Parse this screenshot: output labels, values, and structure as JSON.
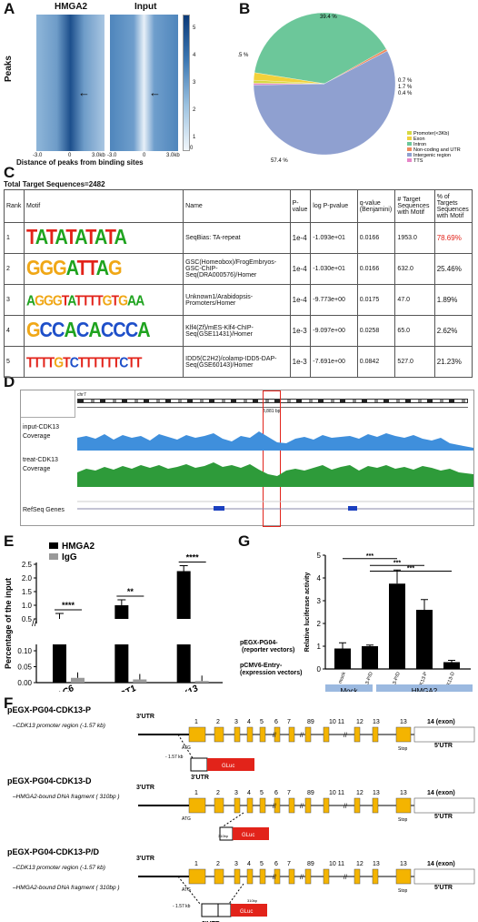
{
  "panels": {
    "A": "A",
    "B": "B",
    "C": "C",
    "D": "D",
    "E": "E",
    "F": "F",
    "G": "G"
  },
  "panelA": {
    "heatmap_titles": [
      "HMGA2",
      "Input"
    ],
    "ylabel": "Peaks",
    "xticks": [
      "-3.0",
      "0",
      "3.0kb",
      "-3.0",
      "0",
      "3.0kb"
    ],
    "xlabel": "Distance of peaks from binding sites",
    "colorbar_ticks": [
      "5",
      "4",
      "3",
      "2",
      "1",
      "0"
    ]
  },
  "panelB": {
    "slices": [
      {
        "label": "Promoter(<3Kb)",
        "pct": "0.7 %",
        "value": 0.7,
        "color": "#d6d943"
      },
      {
        "label": "Exon",
        "pct": "1.7 %",
        "value": 1.7,
        "color": "#f2d13a"
      },
      {
        "label": "Intron",
        "pct": "39.4 %",
        "value": 39.4,
        "color": "#6cc79a"
      },
      {
        "label": "Non-coding and UTR",
        "pct": "0.5 %",
        "value": 0.5,
        "color": "#f08a5d"
      },
      {
        "label": "Intergenic region",
        "pct": "57.4 %",
        "value": 57.4,
        "color": "#8fa0d0"
      },
      {
        "label": "TTS",
        "pct": "0.4 %",
        "value": 0.4,
        "color": "#e785c8"
      }
    ]
  },
  "panelC": {
    "title": "Total Target Sequences=2482",
    "headers": [
      "Rank",
      "Motif",
      "Name",
      "P-value",
      "log P-pvalue",
      "q-value (Benjamini)",
      "# Target Sequences with Motif",
      "% of Targets Sequences with Motif"
    ],
    "rows": [
      {
        "rank": "1",
        "logo": "TATATATATA",
        "name": "SeqBias: TA-repeat",
        "p": "1e-4",
        "logp": "-1.093e+01",
        "q": "0.0166",
        "n": "1953.0",
        "pct": "78.69%"
      },
      {
        "rank": "2",
        "logo": "GGGATTAG",
        "name": "GSC(Homeobox)/FrogEmbryos-GSC-ChIP-Seq(DRA000576)/Homer",
        "p": "1e-4",
        "logp": "-1.030e+01",
        "q": "0.0166",
        "n": "632.0",
        "pct": "25.46%"
      },
      {
        "rank": "3",
        "logo": "AGGGTATTTTGTGAA",
        "name": "Unknown1/Arabidopsis-Promoters/Homer",
        "p": "1e-4",
        "logp": "-9.773e+00",
        "q": "0.0175",
        "n": "47.0",
        "pct": "1.89%"
      },
      {
        "rank": "4",
        "logo": "GCCACACCCA",
        "name": "Klf4(Zf)/mES-Klf4-ChIP-Seq(GSE11431)/Homer",
        "p": "1e-3",
        "logp": "-9.097e+00",
        "q": "0.0258",
        "n": "65.0",
        "pct": "2.62%"
      },
      {
        "rank": "5",
        "logo": "TTTTGTCTTTTTTCTT",
        "name": "IDD5(C2H2)/colamp-IDD5-DAP-Seq(GSE60143)/Homer",
        "p": "1e-3",
        "logp": "-7.691e+00",
        "q": "0.0842",
        "n": "527.0",
        "pct": "21.23%"
      }
    ]
  },
  "panelD": {
    "tracks": [
      "input-CDK13 Coverage",
      "treat-CDK13 Coverage",
      "RefSeq Genes"
    ],
    "track1a": "input-CDK13",
    "track1b": "Coverage",
    "track2a": "treat-CDK13",
    "track2b": "Coverage",
    "track3": "RefSeq Genes",
    "chrom": "chr7",
    "scale": "3,881 bp"
  },
  "panelE": {
    "ylabel": "Percentage of the input",
    "legend": [
      "HMGA2",
      "IgG"
    ],
    "categories": [
      "HDAC6",
      "TWIST1",
      "CDK13"
    ],
    "yticks": [
      "2.5",
      "2.0",
      "1.5",
      "1.0",
      "0.5",
      "0.10",
      "0.05",
      "0.00"
    ],
    "sig": [
      "****",
      "**",
      "****"
    ],
    "chart_data": {
      "type": "bar",
      "categories": [
        "HDAC6",
        "TWIST1",
        "CDK13"
      ],
      "series": [
        {
          "name": "HMGA2",
          "values": [
            0.5,
            1.0,
            2.25
          ],
          "color": "#000000"
        },
        {
          "name": "IgG",
          "values": [
            0.015,
            0.01,
            0.005
          ],
          "color": "#999999"
        }
      ],
      "ylabel": "Percentage of the input",
      "axis_break": true
    }
  },
  "panelG": {
    "ylabel": "Relative luciferase activity",
    "yticks": [
      "5",
      "4",
      "3",
      "2",
      "1",
      "0"
    ],
    "categories": [
      "mock",
      "CDK13-P/D",
      "CDK13-P/D",
      "CDK13-P",
      "CDK13-D"
    ],
    "row1": "pEGX-PG04-",
    "row1b": "(reporter vectors)",
    "row2": "pCMV6-Entry-",
    "row2b": "(expression vectors)",
    "mock": "Mock",
    "hmga2": "HMGA2",
    "sig": [
      "***",
      "***",
      "***"
    ],
    "chart_data": {
      "type": "bar",
      "categories": [
        "mock",
        "CDK13-P/D",
        "CDK13-P/D",
        "CDK13-P",
        "CDK13-D"
      ],
      "values": [
        0.9,
        1.0,
        3.75,
        2.6,
        0.3
      ],
      "ylabel": "Relative luciferase activity",
      "ylim": [
        0,
        5
      ]
    }
  },
  "panelF": {
    "constructs": [
      {
        "title": "pEGX-PG04-CDK13-P",
        "line1": "CDK13 promoter region (-1.57 kb)",
        "line2": ""
      },
      {
        "title": "pEGX-PG04-CDK13-D",
        "line1": "HMGA2-bound  DNA fragment ( 310bp )",
        "line2": ""
      },
      {
        "title": "pEGX-PG04-CDK13-P/D",
        "line1": "CDK13 promoter region (-1.57 kb)",
        "line2": "HMGA2-bound  DNA fragment ( 310bp )"
      }
    ],
    "utr3": "3'UTR",
    "utr5": "5'UTR",
    "exon14": "14 (exon)",
    "atg": "ATG",
    "stop": "Stop",
    "gluc": "GLuc",
    "kb": "- 1.57 kb",
    "bp": "310bp",
    "exon_nums": [
      "1",
      "2",
      "3",
      "4",
      "5",
      "6",
      "7",
      "89",
      "10 11",
      "12",
      "13"
    ]
  }
}
